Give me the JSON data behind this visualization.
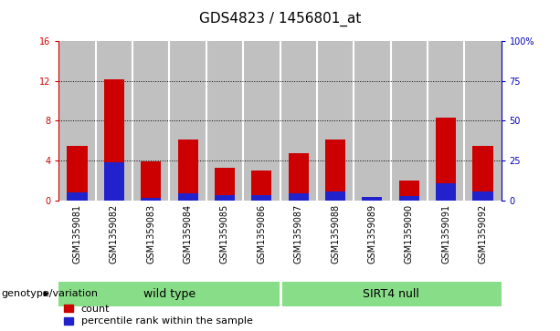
{
  "title": "GDS4823 / 1456801_at",
  "categories": [
    "GSM1359081",
    "GSM1359082",
    "GSM1359083",
    "GSM1359084",
    "GSM1359085",
    "GSM1359086",
    "GSM1359087",
    "GSM1359088",
    "GSM1359089",
    "GSM1359090",
    "GSM1359091",
    "GSM1359092"
  ],
  "count_values": [
    5.5,
    12.2,
    3.9,
    6.1,
    3.3,
    3.0,
    4.7,
    6.1,
    0.3,
    2.0,
    8.3,
    5.5
  ],
  "percentile_values": [
    0.8,
    3.8,
    0.2,
    0.7,
    0.5,
    0.5,
    0.7,
    0.9,
    0.3,
    0.4,
    1.7,
    0.9
  ],
  "group_labels": [
    "wild type",
    "SIRT4 null"
  ],
  "group_color": "#88dd88",
  "genotype_label": "genotype/variation",
  "ylim_left": [
    0,
    16
  ],
  "ylim_right": [
    0,
    100
  ],
  "yticks_left": [
    0,
    4,
    8,
    12,
    16
  ],
  "ytick_labels_left": [
    "0",
    "4",
    "8",
    "12",
    "16"
  ],
  "yticks_right_vals": [
    0,
    25,
    50,
    75,
    100
  ],
  "ytick_labels_right": [
    "0",
    "25",
    "50",
    "75",
    "100%"
  ],
  "bar_color_red": "#cc0000",
  "bar_color_blue": "#2222cc",
  "bar_width": 0.55,
  "bg_column": "#c0c0c0",
  "legend_labels": [
    "count",
    "percentile rank within the sample"
  ],
  "right_axis_color": "#0000bb",
  "left_axis_color": "#cc0000",
  "title_fontsize": 11,
  "tick_fontsize": 7,
  "legend_fontsize": 8,
  "group_fontsize": 9
}
